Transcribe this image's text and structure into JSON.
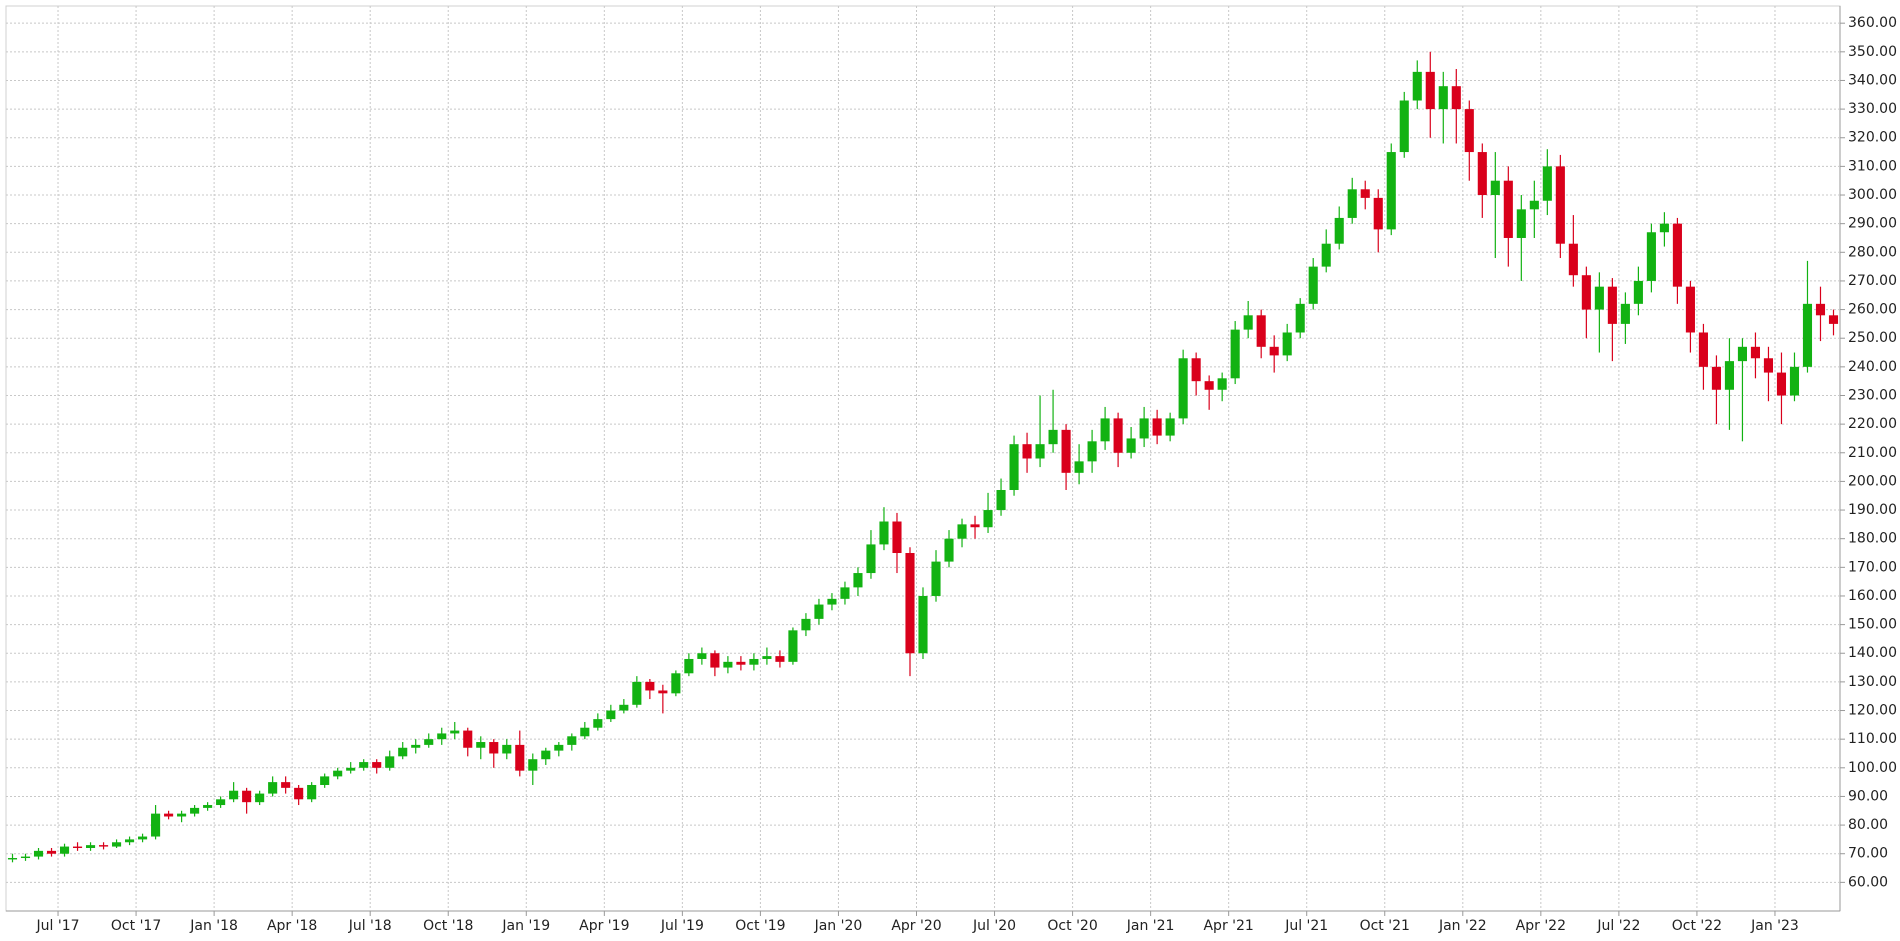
{
  "chart_data": {
    "type": "candlestick",
    "categories": [
      null,
      null,
      null,
      null,
      "Jul '17",
      null,
      null,
      null,
      null,
      null,
      "Oct '17",
      null,
      null,
      null,
      null,
      null,
      "Jan '18",
      null,
      null,
      null,
      null,
      null,
      "Apr '18",
      null,
      null,
      null,
      null,
      null,
      "Jul '18",
      null,
      null,
      null,
      null,
      null,
      "Oct '18",
      null,
      null,
      null,
      null,
      null,
      "Jan '19",
      null,
      null,
      null,
      null,
      null,
      "Apr '19",
      null,
      null,
      null,
      null,
      null,
      "Jul '19",
      null,
      null,
      null,
      null,
      null,
      "Oct '19",
      null,
      null,
      null,
      null,
      null,
      "Jan '20",
      null,
      null,
      null,
      null,
      null,
      "Apr '20",
      null,
      null,
      null,
      null,
      null,
      "Jul '20",
      null,
      null,
      null,
      null,
      null,
      "Oct '20",
      null,
      null,
      null,
      null,
      null,
      "Jan '21",
      null,
      null,
      null,
      null,
      null,
      "Apr '21",
      null,
      null,
      null,
      null,
      null,
      "Jul '21",
      null,
      null,
      null,
      null,
      null,
      "Oct '21",
      null,
      null,
      null,
      null,
      null,
      "Jan '22",
      null,
      null,
      null,
      null,
      null,
      "Apr '22",
      null,
      null,
      null,
      null,
      null,
      "Jul '22",
      null,
      null,
      null,
      null,
      null,
      "Oct '22",
      null,
      null,
      null,
      null,
      null,
      "Jan '23",
      null,
      null,
      null,
      null
    ],
    "open": [
      68,
      68.5,
      69,
      71,
      70,
      72.5,
      72,
      73,
      72.5,
      74,
      75,
      76,
      84,
      83,
      84,
      86,
      87,
      89,
      92,
      88,
      91,
      95,
      93,
      89,
      94,
      97,
      99,
      100,
      102,
      100,
      104,
      107,
      108,
      110,
      112,
      113,
      107,
      109,
      105,
      108,
      99,
      103,
      106,
      108,
      111,
      114,
      117,
      120,
      122,
      130,
      127,
      126,
      133,
      138,
      140,
      135,
      137,
      136,
      138,
      139,
      137,
      148,
      152,
      157,
      159,
      163,
      168,
      178,
      186,
      175,
      140,
      160,
      172,
      180,
      185,
      184,
      190,
      197,
      213,
      208,
      213,
      218,
      203,
      207,
      214,
      222,
      210,
      215,
      222,
      216,
      222,
      243,
      235,
      232,
      236,
      253,
      258,
      247,
      244,
      252,
      262,
      275,
      283,
      292,
      302,
      299,
      288,
      315,
      333,
      343,
      330,
      338,
      330,
      315,
      300,
      305,
      285,
      295,
      298,
      310,
      283,
      272,
      260,
      268,
      255,
      262,
      270,
      287,
      290,
      268,
      252,
      240,
      232,
      242,
      247,
      243,
      238,
      230,
      240,
      262,
      258
    ],
    "high": [
      70,
      70,
      72,
      72,
      73.5,
      74,
      74,
      74,
      75,
      76,
      77,
      87,
      85,
      85,
      87,
      88,
      90,
      95,
      93,
      92,
      97,
      97,
      94,
      95,
      98,
      100,
      102,
      103,
      103,
      106,
      109,
      110,
      112,
      114,
      116,
      114,
      111,
      110,
      110,
      113,
      105,
      107,
      109,
      112,
      116,
      119,
      122,
      124,
      132,
      131,
      129,
      134,
      140,
      142,
      141,
      139,
      139,
      140,
      142,
      141,
      149,
      154,
      159,
      161,
      165,
      170,
      183,
      191,
      189,
      177,
      163,
      176,
      183,
      187,
      188,
      196,
      201,
      216,
      217,
      230,
      232,
      220,
      213,
      218,
      226,
      224,
      219,
      226,
      225,
      224,
      246,
      245,
      237,
      238,
      256,
      263,
      260,
      251,
      255,
      264,
      278,
      288,
      296,
      306,
      305,
      302,
      318,
      336,
      347,
      350,
      343,
      344,
      333,
      318,
      315,
      310,
      300,
      305,
      316,
      314,
      293,
      275,
      273,
      271,
      266,
      275,
      290,
      294,
      292,
      270,
      255,
      244,
      250,
      250,
      252,
      247,
      245,
      245,
      277,
      268,
      260
    ],
    "low": [
      67,
      67.5,
      68,
      69,
      69,
      71,
      71,
      71.5,
      72,
      73,
      74,
      75,
      82,
      81,
      83,
      85,
      86,
      88,
      84,
      87,
      90,
      91,
      87,
      88,
      93,
      96,
      98,
      99,
      98,
      99,
      103,
      105,
      107,
      108,
      110,
      104,
      103,
      100,
      103,
      97,
      94,
      101,
      104,
      106,
      110,
      113,
      116,
      119,
      121,
      124,
      119,
      125,
      132,
      136,
      132,
      133,
      134,
      134,
      136,
      135,
      136,
      146,
      150,
      155,
      157,
      160,
      166,
      176,
      168,
      132,
      138,
      158,
      170,
      177,
      180,
      182,
      188,
      195,
      203,
      205,
      210,
      197,
      199,
      203,
      211,
      205,
      208,
      212,
      213,
      214,
      220,
      230,
      225,
      228,
      234,
      250,
      243,
      238,
      242,
      250,
      260,
      273,
      281,
      290,
      295,
      280,
      286,
      313,
      330,
      320,
      318,
      318,
      305,
      292,
      278,
      275,
      270,
      285,
      293,
      278,
      268,
      250,
      245,
      242,
      248,
      258,
      266,
      282,
      262,
      245,
      232,
      220,
      218,
      214,
      236,
      228,
      220,
      228,
      238,
      249,
      251
    ],
    "close": [
      68.5,
      69,
      71,
      70,
      72.5,
      72,
      73,
      72.5,
      74,
      75,
      76,
      84,
      83,
      84,
      86,
      87,
      89,
      92,
      88,
      91,
      95,
      93,
      89,
      94,
      97,
      99,
      100,
      102,
      100,
      104,
      107,
      108,
      110,
      112,
      113,
      107,
      109,
      105,
      108,
      99,
      103,
      106,
      108,
      111,
      114,
      117,
      120,
      122,
      130,
      127,
      126,
      133,
      138,
      140,
      135,
      137,
      136,
      138,
      139,
      137,
      148,
      152,
      157,
      159,
      163,
      168,
      178,
      186,
      175,
      140,
      160,
      172,
      180,
      185,
      184,
      190,
      197,
      213,
      208,
      213,
      218,
      203,
      207,
      214,
      222,
      210,
      215,
      222,
      216,
      222,
      243,
      235,
      232,
      236,
      253,
      258,
      247,
      244,
      252,
      262,
      275,
      283,
      292,
      302,
      299,
      288,
      315,
      333,
      343,
      330,
      338,
      330,
      315,
      300,
      305,
      285,
      295,
      298,
      310,
      283,
      272,
      260,
      268,
      255,
      262,
      270,
      287,
      290,
      268,
      252,
      240,
      232,
      242,
      247,
      243,
      238,
      230,
      240,
      262,
      258,
      255
    ],
    "up_color": "#12b212",
    "down_color": "#d9001b",
    "ylim": [
      50,
      366
    ],
    "yticks": [
      {
        "value": 60,
        "label": "60.00"
      },
      {
        "value": 70,
        "label": "70.00"
      },
      {
        "value": 80,
        "label": "80.00"
      },
      {
        "value": 90,
        "label": "90.00"
      },
      {
        "value": 100,
        "label": "100.00"
      },
      {
        "value": 110,
        "label": "110.00"
      },
      {
        "value": 120,
        "label": "120.00"
      },
      {
        "value": 130,
        "label": "130.00"
      },
      {
        "value": 140,
        "label": "140.00"
      },
      {
        "value": 150,
        "label": "150.00"
      },
      {
        "value": 160,
        "label": "160.00"
      },
      {
        "value": 170,
        "label": "170.00"
      },
      {
        "value": 180,
        "label": "180.00"
      },
      {
        "value": 190,
        "label": "190.00"
      },
      {
        "value": 200,
        "label": "200.00"
      },
      {
        "value": 210,
        "label": "210.00"
      },
      {
        "value": 220,
        "label": "220.00"
      },
      {
        "value": 230,
        "label": "230.00"
      },
      {
        "value": 240,
        "label": "240.00"
      },
      {
        "value": 250,
        "label": "250.00"
      },
      {
        "value": 260,
        "label": "260.00"
      },
      {
        "value": 270,
        "label": "270.00"
      },
      {
        "value": 280,
        "label": "280.00"
      },
      {
        "value": 290,
        "label": "290.00"
      },
      {
        "value": 300,
        "label": "300.00"
      },
      {
        "value": 310,
        "label": "310.00"
      },
      {
        "value": 320,
        "label": "320.00"
      },
      {
        "value": 330,
        "label": "330.00"
      },
      {
        "value": 340,
        "label": "340.00"
      },
      {
        "value": 350,
        "label": "350.00"
      },
      {
        "value": 360,
        "label": "360.00"
      }
    ],
    "grid": true
  }
}
